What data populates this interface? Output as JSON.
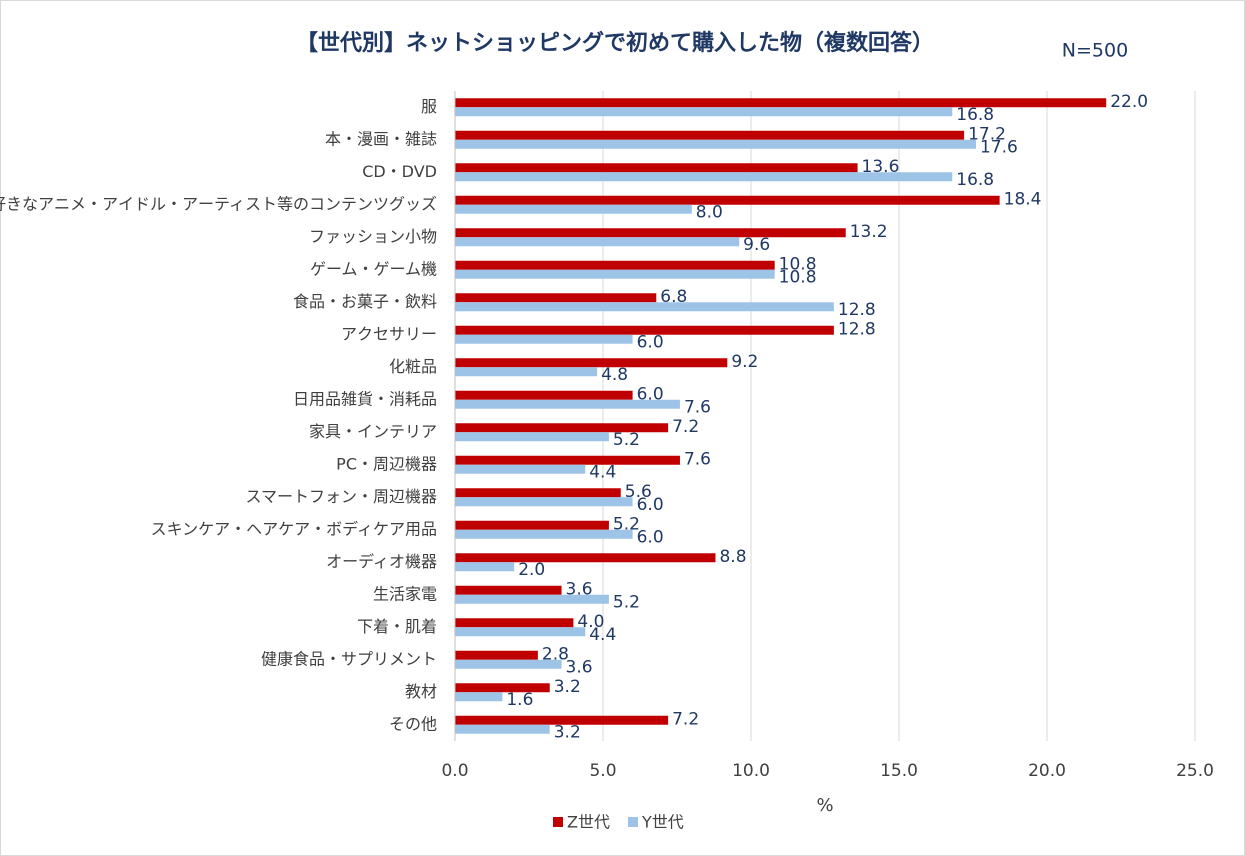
{
  "chart_data": {
    "type": "bar",
    "orientation": "horizontal",
    "title": "【世代別】ネットショッピングで初めて購入した物（複数回答）",
    "annotation": "N=500",
    "x_label": "%",
    "categories": [
      "服",
      "本・漫画・雑誌",
      "CD・DVD",
      "好きなアニメ・アイドル・アーティスト等のコンテンツグッズ",
      "ファッション小物",
      "ゲーム・ゲーム機",
      "食品・お菓子・飲料",
      "アクセサリー",
      "化粧品",
      "日用品雑貨・消耗品",
      "家具・インテリア",
      "PC・周辺機器",
      "スマートフォン・周辺機器",
      "スキンケア・ヘアケア・ボディケア用品",
      "オーディオ機器",
      "生活家電",
      "下着・肌着",
      "健康食品・サプリメント",
      "教材",
      "その他"
    ],
    "series": [
      {
        "name": "Z世代",
        "color": "#c00000",
        "values": [
          22.0,
          17.2,
          13.6,
          18.4,
          13.2,
          10.8,
          6.8,
          12.8,
          9.2,
          6.0,
          7.2,
          7.6,
          5.6,
          5.2,
          8.8,
          3.6,
          4.0,
          2.8,
          3.2,
          7.2
        ],
        "value_labels": [
          "22.0",
          "17.2",
          "13.6",
          "18.4",
          "13.2",
          "10.8",
          "6.8",
          "12.8",
          "9.2",
          "6.0",
          "7.2",
          "7.6",
          "5.6",
          "5.2",
          "8.8",
          "3.6",
          "4.0",
          "2.8",
          "3.2",
          "7.2"
        ]
      },
      {
        "name": "Y世代",
        "color": "#9dc3e6",
        "values": [
          16.8,
          17.6,
          16.8,
          8.0,
          9.6,
          10.8,
          12.8,
          6.0,
          4.8,
          7.6,
          5.2,
          4.4,
          6.0,
          6.0,
          2.0,
          5.2,
          4.4,
          3.6,
          1.6,
          3.2
        ],
        "value_labels": [
          "16.8",
          "17.6",
          "16.8",
          "8.0",
          "9.6",
          "10.8",
          "12.8",
          "6.0",
          "4.8",
          "7.6",
          "5.2",
          "4.4",
          "6.0",
          "6.0",
          "2.0",
          "5.2",
          "4.4",
          "3.6",
          "1.6",
          "3.2"
        ]
      }
    ],
    "xlim": [
      0,
      25
    ],
    "xticks": [
      {
        "value": 0,
        "label": "0.0"
      },
      {
        "value": 5,
        "label": "5.0"
      },
      {
        "value": 10,
        "label": "10.0"
      },
      {
        "value": 15,
        "label": "15.0"
      },
      {
        "value": 20,
        "label": "20.0"
      },
      {
        "value": 25,
        "label": "25.0"
      }
    ],
    "grid": true,
    "legend": "bottom"
  }
}
